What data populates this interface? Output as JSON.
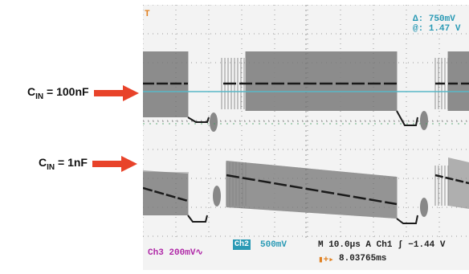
{
  "callouts": [
    {
      "prefix": "C",
      "sub": "IN",
      "suffix": " = 100nF"
    },
    {
      "prefix": "C",
      "sub": "IN",
      "suffix": " = 1nF"
    }
  ],
  "scope": {
    "delta_symbol": "Δ:",
    "delta_value": "750mV",
    "at_symbol": "@:",
    "at_value": "1.47 V",
    "ch2_label": "Ch2",
    "ch2_scale": "500mV",
    "ch3_label": "Ch3",
    "ch3_scale": "200mV",
    "ch3_coupling": "∿",
    "timebase": "M 10.0µs",
    "trigger_mode": "A",
    "trigger_source": "Ch1",
    "trigger_slope": "ʃ",
    "trigger_level": "−1.44 V",
    "trigger_position_icon": "▮+▸",
    "trigger_position": "8.03765ms"
  },
  "colors": {
    "arrow": "#e8432a",
    "screen_bg": "#f3f3f3",
    "grid": "#9a9a9a",
    "trace": "#1a1a1a",
    "trace_fill": "#8a8a8a",
    "cursor": "#58b8c8",
    "measure_text": "#2a9ab5",
    "ch3": "#b02aa8",
    "trigger_marker": "#e08020"
  }
}
